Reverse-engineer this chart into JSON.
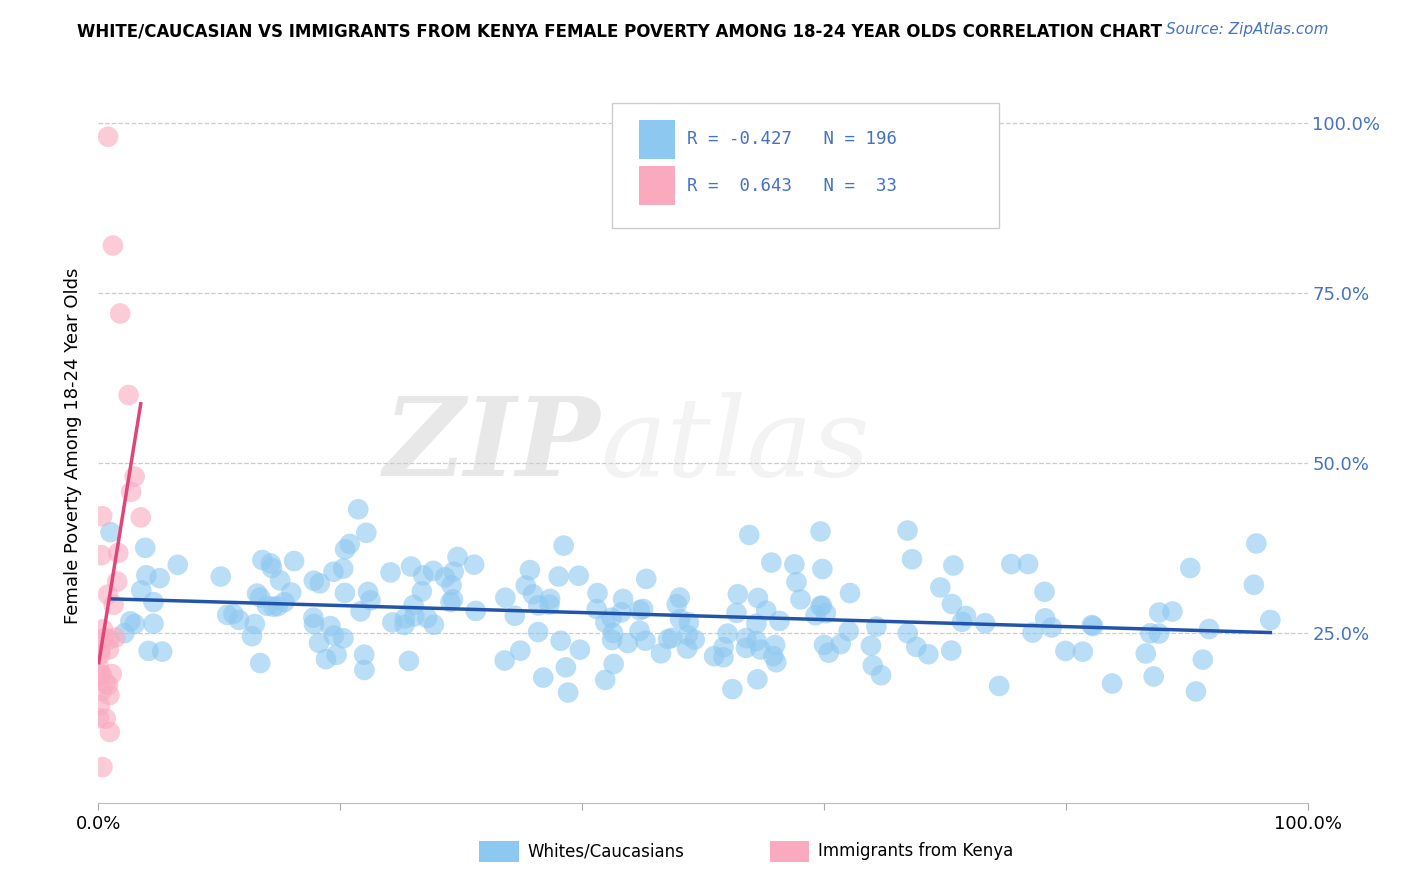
{
  "title": "WHITE/CAUCASIAN VS IMMIGRANTS FROM KENYA FEMALE POVERTY AMONG 18-24 YEAR OLDS CORRELATION CHART",
  "source": "Source: ZipAtlas.com",
  "ylabel": "Female Poverty Among 18-24 Year Olds",
  "watermark_zip": "ZIP",
  "watermark_atlas": "atlas",
  "blue_R": -0.427,
  "blue_N": 196,
  "pink_R": 0.643,
  "pink_N": 33,
  "blue_color": "#8DC8F0",
  "pink_color": "#F9AABF",
  "blue_line_color": "#2255AA",
  "pink_line_color": "#E0457A",
  "legend_blue_label": "Whites/Caucasians",
  "legend_pink_label": "Immigrants from Kenya",
  "blue_scatter_seed": 42,
  "pink_scatter_seed": 7,
  "xlim": [
    0,
    1
  ],
  "ylim": [
    0,
    1.05
  ],
  "background_color": "#ffffff",
  "grid_color": "#cccccc",
  "right_tick_color": "#4472C4",
  "title_color": "#000000",
  "source_color": "#4472C4"
}
